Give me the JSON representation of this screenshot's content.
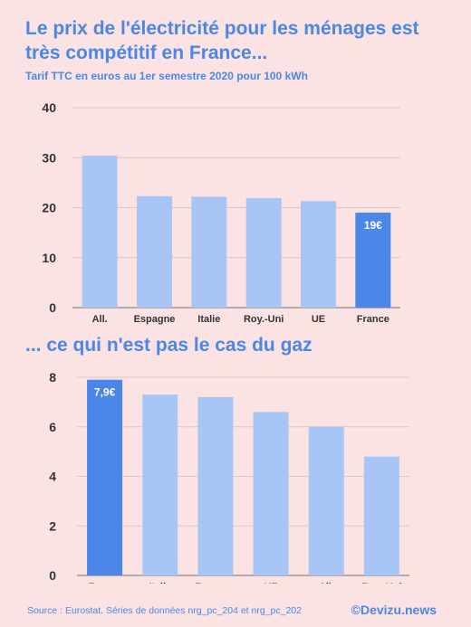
{
  "header": {
    "title": "Le prix de l'électricité pour les ménages est très compétitif en France...",
    "subtitle": "Tarif TTC en euros au 1er semestre 2020 pour 100 kWh"
  },
  "section2": {
    "title": "... ce qui n'est pas le cas du gaz"
  },
  "footer": {
    "source": "Source : Eurostat. Séries de données nrg_pc_204 et nrg_pc_202",
    "brand": "©Devizu.news"
  },
  "colors": {
    "bar": "#a8c6f5",
    "highlight": "#4a87e8",
    "axis_text": "#333333",
    "grid": "#d9c6c6"
  },
  "chart_data": [
    {
      "type": "bar",
      "title": "Le prix de l'électricité pour les ménages est très compétitif en France...",
      "subtitle": "Tarif TTC en euros au 1er semestre 2020 pour 100 kWh",
      "categories": [
        "All.",
        "Espagne",
        "Italie",
        "Roy.-Uni",
        "UE",
        "France"
      ],
      "values": [
        30.4,
        22.3,
        22.2,
        21.9,
        21.3,
        19.0
      ],
      "highlight_index": 5,
      "data_label": "19€",
      "ylim": [
        0,
        40
      ],
      "yticks": [
        0,
        10,
        20,
        30,
        40
      ],
      "grid": true,
      "xlabel": "",
      "ylabel": ""
    },
    {
      "type": "bar",
      "title": "... ce qui n'est pas le cas du gaz",
      "categories": [
        "France",
        "Italie",
        "Espagne",
        "UE",
        "All.",
        "Roy.-Uni"
      ],
      "values": [
        7.9,
        7.3,
        7.2,
        6.6,
        6.0,
        4.8
      ],
      "highlight_index": 0,
      "data_label": "7,9€",
      "ylim": [
        0,
        8
      ],
      "yticks": [
        0,
        2,
        4,
        6,
        8
      ],
      "grid": true,
      "xlabel": "",
      "ylabel": ""
    }
  ]
}
